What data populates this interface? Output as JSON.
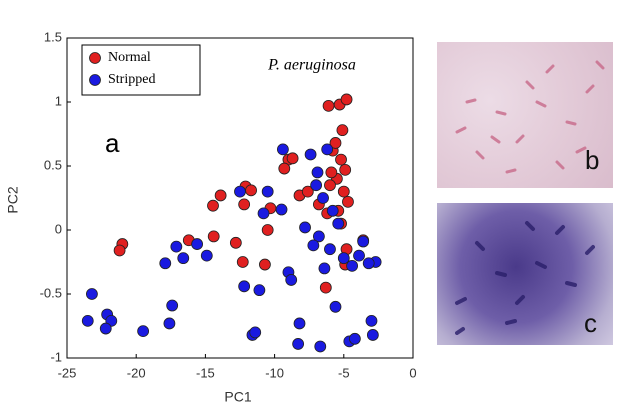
{
  "chart_data": {
    "type": "scatter",
    "title": "P. aeruginosa",
    "panel_label": "a",
    "x_label": "PC1",
    "y_label": "PC2",
    "xlim": [
      -25,
      0
    ],
    "xticks": [
      -25,
      -20,
      -15,
      -10,
      -5,
      0
    ],
    "ylim": [
      -1,
      1.5
    ],
    "yticks": [
      -1,
      -0.5,
      0,
      0.5,
      1,
      1.5
    ],
    "legend": "upper left",
    "series": [
      {
        "name": "Normal",
        "color": "#e02020",
        "x": [
          -21.0,
          -21.2,
          -14.45,
          -13.9,
          -12.1,
          -11.7,
          -12.2,
          -16.2,
          -14.4,
          -12.8,
          -12.3,
          -10.7,
          -10.5,
          -10.3,
          -9.0,
          -8.7,
          -9.3,
          -8.2,
          -6.2,
          -5.3,
          -4.8,
          -6.1,
          -5.1,
          -5.8,
          -5.2,
          -4.9,
          -5.5,
          -6.0,
          -5.0,
          -4.7,
          -5.4,
          -5.9,
          -6.3,
          -4.9,
          -5.6,
          -7.6,
          -6.8,
          -5.2,
          -4.8,
          -3.6
        ],
        "values": [
          -0.11,
          -0.16,
          0.19,
          0.27,
          0.34,
          0.31,
          0.2,
          -0.08,
          -0.05,
          -0.1,
          -0.25,
          -0.27,
          0.0,
          0.17,
          0.55,
          0.56,
          0.48,
          0.27,
          0.13,
          0.98,
          1.02,
          0.97,
          0.78,
          0.62,
          0.55,
          0.47,
          0.4,
          0.35,
          0.3,
          0.22,
          0.15,
          0.45,
          -0.45,
          -0.27,
          0.68,
          0.3,
          0.2,
          0.05,
          -0.15,
          -0.08
        ]
      },
      {
        "name": "Stripped",
        "color": "#1a1ae0",
        "x": [
          -23.2,
          -23.5,
          -22.1,
          -21.8,
          -22.2,
          -19.5,
          -17.4,
          -17.6,
          -17.9,
          -17.1,
          -16.6,
          -15.6,
          -14.9,
          -12.2,
          -11.1,
          -11.6,
          -8.2,
          -8.3,
          -6.7,
          -4.6,
          -3.0,
          -2.9,
          -12.5,
          -10.5,
          -10.8,
          -9.5,
          -9.4,
          -7.8,
          -9.0,
          -8.8,
          -2.7,
          -3.2,
          -3.6,
          -6.2,
          -7.4,
          -7.0,
          -6.5,
          -5.8,
          -5.4,
          -6.8,
          -6.0,
          -5.0,
          -4.4,
          -3.9,
          -6.4,
          -7.2,
          -5.6,
          -4.2,
          -11.4,
          -6.9
        ],
        "values": [
          -0.5,
          -0.71,
          -0.66,
          -0.71,
          -0.77,
          -0.79,
          -0.59,
          -0.73,
          -0.26,
          -0.13,
          -0.22,
          -0.11,
          -0.2,
          -0.44,
          -0.47,
          -0.82,
          -0.73,
          -0.89,
          -0.91,
          -0.87,
          -0.71,
          -0.82,
          0.3,
          0.3,
          0.13,
          0.16,
          0.63,
          0.02,
          -0.33,
          -0.39,
          -0.25,
          -0.26,
          -0.09,
          0.63,
          0.59,
          0.35,
          0.25,
          0.15,
          0.05,
          -0.05,
          -0.15,
          -0.22,
          -0.28,
          -0.2,
          -0.3,
          -0.12,
          -0.6,
          -0.85,
          -0.8,
          0.45
        ]
      }
    ]
  },
  "photos": [
    {
      "label": "b"
    },
    {
      "label": "c"
    }
  ]
}
